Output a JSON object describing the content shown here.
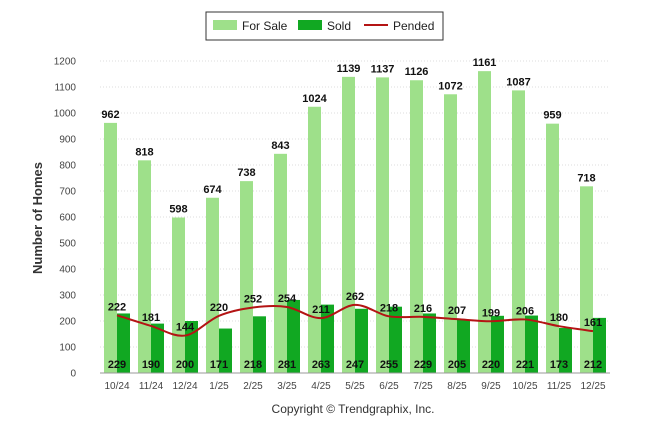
{
  "chart_data": {
    "type": "bar",
    "title": "",
    "xlabel": "",
    "ylabel": "Number of Homes",
    "ylim": [
      0,
      1200
    ],
    "yticks": [
      0,
      100,
      200,
      300,
      400,
      500,
      600,
      700,
      800,
      900,
      1000,
      1100,
      1200
    ],
    "grid": true,
    "legend_position": "top-center",
    "categories": [
      "10/24",
      "11/24",
      "12/24",
      "1/25",
      "2/25",
      "3/25",
      "4/25",
      "5/25",
      "6/25",
      "7/25",
      "8/25",
      "9/25",
      "10/25",
      "11/25",
      "12/25"
    ],
    "series": [
      {
        "name": "For Sale",
        "kind": "bar",
        "color": "#9ee08a",
        "values": [
          962,
          818,
          598,
          674,
          738,
          843,
          1024,
          1139,
          1137,
          1126,
          1072,
          1161,
          1087,
          959,
          718
        ]
      },
      {
        "name": "Sold",
        "kind": "bar",
        "color": "#11a822",
        "values": [
          229,
          190,
          200,
          171,
          218,
          281,
          263,
          247,
          255,
          229,
          205,
          220,
          221,
          173,
          212
        ]
      },
      {
        "name": "Pended",
        "kind": "line",
        "color": "#b41414",
        "values": [
          222,
          181,
          144,
          220,
          252,
          254,
          211,
          262,
          218,
          216,
          207,
          199,
          206,
          180,
          161
        ]
      }
    ]
  },
  "copyright": "Copyright © Trendgraphix, Inc."
}
